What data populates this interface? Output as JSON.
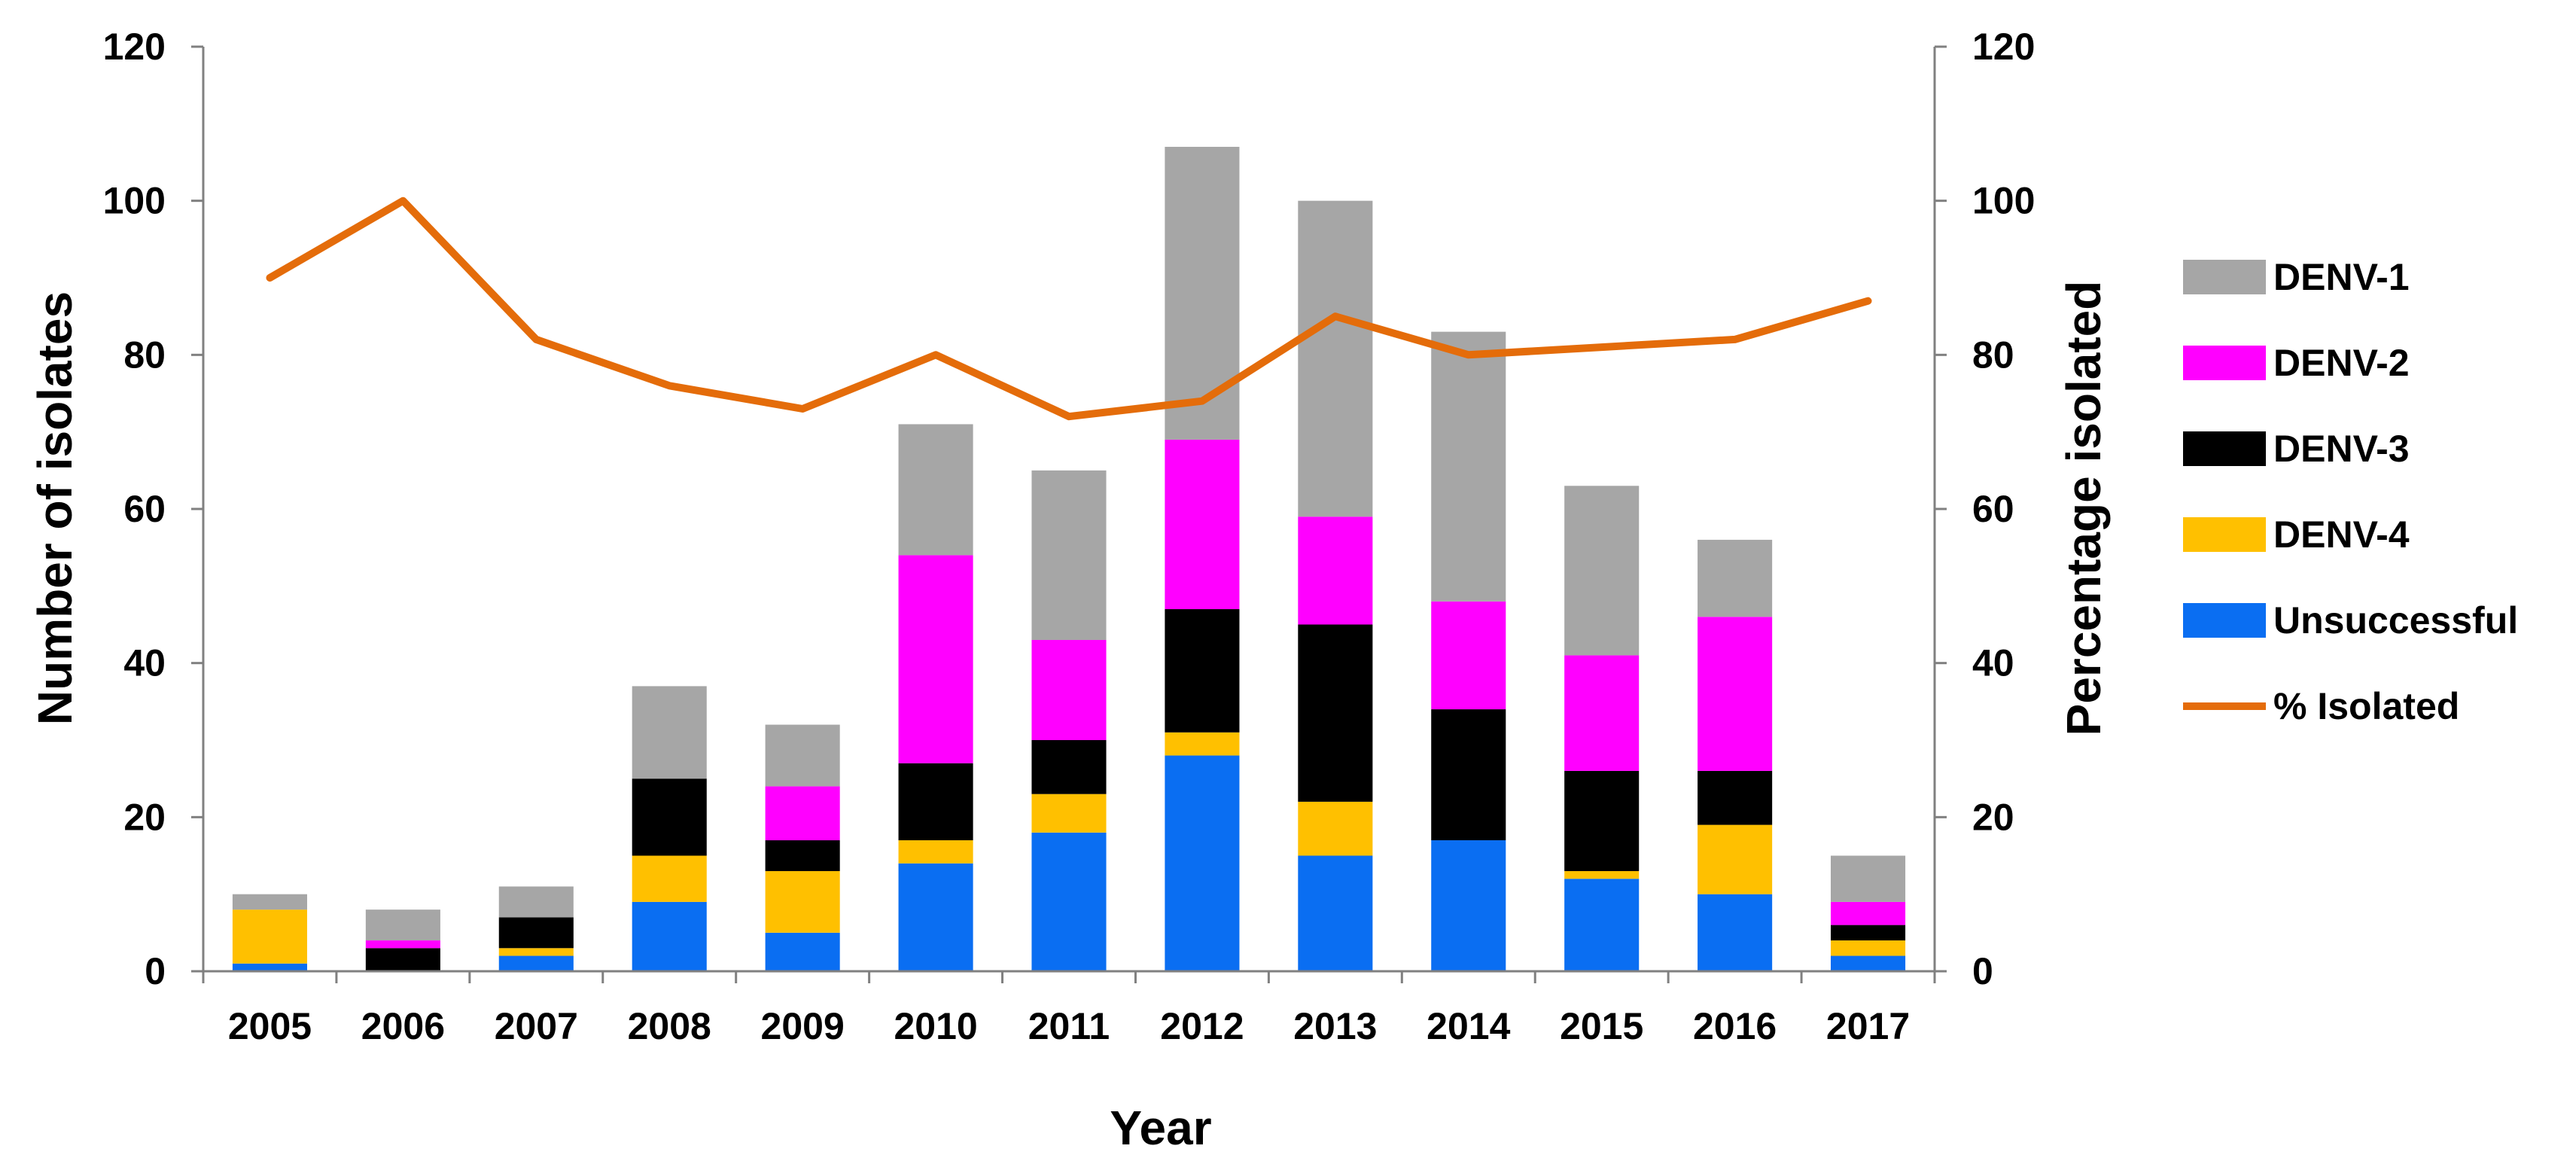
{
  "chart_data": {
    "type": "bar",
    "stacked": true,
    "categories": [
      "2005",
      "2006",
      "2007",
      "2008",
      "2009",
      "2010",
      "2011",
      "2012",
      "2013",
      "2014",
      "2015",
      "2016",
      "2017"
    ],
    "series": [
      {
        "name": "Unsuccessful",
        "color": "#0A6EF2",
        "values": [
          1,
          0,
          2,
          9,
          5,
          14,
          18,
          28,
          15,
          17,
          12,
          10,
          2
        ]
      },
      {
        "name": "DENV-4",
        "color": "#FFC000",
        "values": [
          7,
          0,
          1,
          6,
          8,
          3,
          5,
          3,
          7,
          0,
          1,
          9,
          2
        ]
      },
      {
        "name": "DENV-3",
        "color": "#000000",
        "values": [
          0,
          3,
          4,
          10,
          4,
          10,
          7,
          16,
          23,
          17,
          13,
          7,
          2
        ]
      },
      {
        "name": "DENV-2",
        "color": "#FF00FF",
        "values": [
          0,
          1,
          0,
          0,
          7,
          27,
          13,
          22,
          14,
          14,
          15,
          20,
          3
        ]
      },
      {
        "name": "DENV-1",
        "color": "#A6A6A6",
        "values": [
          2,
          4,
          4,
          12,
          8,
          17,
          22,
          38,
          41,
          35,
          22,
          10,
          6
        ]
      }
    ],
    "line_series": {
      "name": "% Isolated",
      "color": "#E46C0A",
      "values": [
        90,
        100,
        82,
        76,
        73,
        80,
        72,
        74,
        85,
        80,
        81,
        82,
        87
      ]
    },
    "xlabel": "Year",
    "ylabel": "Number of isolates",
    "y2label": "Percentage isolated",
    "ylim": [
      0,
      120
    ],
    "y2lim": [
      0,
      120
    ],
    "yticks": [
      "0",
      "20",
      "40",
      "60",
      "80",
      "100",
      "120"
    ],
    "y2ticks": [
      "0",
      "20",
      "40",
      "60",
      "80",
      "100",
      "120"
    ],
    "legend_position": "right",
    "legend_order": [
      "DENV-1",
      "DENV-2",
      "DENV-3",
      "DENV-4",
      "Unsuccessful",
      "% Isolated"
    ]
  }
}
